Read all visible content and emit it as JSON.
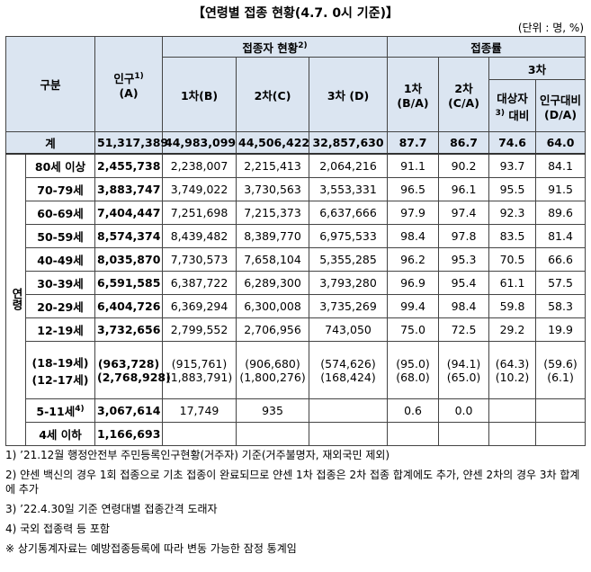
{
  "header": {
    "title": "【연령별 접종 현황(4.7. 0시 기준)】",
    "unit": "(단위 : 명, %)"
  },
  "table": {
    "head": {
      "category": "구분",
      "population": "인구",
      "population_note": "1)",
      "population_code": "(A)",
      "vaccinated": "접종자 현황",
      "vaccinated_note": "2)",
      "rate": "접종률",
      "dose1": "1차(B)",
      "dose2": "2차(C)",
      "dose3": "3차 (D)",
      "rate1": [
        "1차",
        "(B/A)"
      ],
      "rate2": [
        "2차",
        "(C/A)"
      ],
      "rate3": "3차",
      "rate3_target": [
        "대상자",
        "대비"
      ],
      "rate3_target_note": "3)",
      "rate3_pop": [
        "인구대비",
        "(D/A)"
      ]
    },
    "total": {
      "label": "계",
      "cells": [
        "51,317,389",
        "44,983,099",
        "44,506,422",
        "32,857,630",
        "87.7",
        "86.7",
        "74.6",
        "64.0"
      ]
    },
    "side_label": "연령",
    "rows": [
      {
        "label": "80세 이상",
        "cells": [
          "2,455,738",
          "2,238,007",
          "2,215,413",
          "2,064,216",
          "91.1",
          "90.2",
          "93.7",
          "84.1"
        ]
      },
      {
        "label": "70-79세",
        "cells": [
          "3,883,747",
          "3,749,022",
          "3,730,563",
          "3,553,331",
          "96.5",
          "96.1",
          "95.5",
          "91.5"
        ]
      },
      {
        "label": "60-69세",
        "cells": [
          "7,404,447",
          "7,251,698",
          "7,215,373",
          "6,637,666",
          "97.9",
          "97.4",
          "92.3",
          "89.6"
        ]
      },
      {
        "label": "50-59세",
        "cells": [
          "8,574,374",
          "8,439,482",
          "8,389,770",
          "6,975,533",
          "98.4",
          "97.8",
          "83.5",
          "81.4"
        ]
      },
      {
        "label": "40-49세",
        "cells": [
          "8,035,870",
          "7,730,573",
          "7,658,104",
          "5,355,285",
          "96.2",
          "95.3",
          "70.5",
          "66.6"
        ]
      },
      {
        "label": "30-39세",
        "cells": [
          "6,591,585",
          "6,387,722",
          "6,289,300",
          "3,793,280",
          "96.9",
          "95.4",
          "61.1",
          "57.5"
        ]
      },
      {
        "label": "20-29세",
        "cells": [
          "6,404,726",
          "6,369,294",
          "6,300,008",
          "3,735,269",
          "99.4",
          "98.4",
          "59.8",
          "58.3"
        ]
      },
      {
        "label": "12-19세",
        "cells": [
          "3,732,656",
          "2,799,552",
          "2,706,956",
          "743,050",
          "75.0",
          "72.5",
          "29.2",
          "19.9"
        ]
      },
      {
        "label": [
          "(18-19세)",
          "(12-17세)"
        ],
        "cells": [
          [
            "(963,728)",
            "(2,768,928)"
          ],
          [
            "(915,761)",
            "(1,883,791)"
          ],
          [
            "(906,680)",
            "(1,800,276)"
          ],
          [
            "(574,626)",
            "(168,424)"
          ],
          [
            "(95.0)",
            "(68.0)"
          ],
          [
            "(94.1)",
            "(65.0)"
          ],
          [
            "(64.3)",
            "(10.2)"
          ],
          [
            "(59.6)",
            "(6.1)"
          ]
        ]
      },
      {
        "label": "5-11세",
        "label_note": "4)",
        "cells": [
          "3,067,614",
          "17,749",
          "935",
          null,
          "0.6",
          "0.0",
          null,
          null
        ]
      },
      {
        "label": "4세 이하",
        "cells": [
          "1,166,693",
          null,
          null,
          null,
          null,
          null,
          null,
          null
        ]
      }
    ]
  },
  "footnotes": [
    "1) ’21.12월 행정안전부 주민등록인구현황(거주자) 기준(거주불명자, 재외국민 제외)",
    "2) 얀센 백신의 경우 1회 접종으로 기초 접종이 완료되므로 얀센 1차 접종은 2차 접종 합계에도 추가, 얀센 2차의 경우 3차 합계에 추가",
    "3) ’22.4.30일 기준 연령대별 접종간격 도래자",
    "4) 국외 접종력 등 포함",
    "※ 상기통계자료는 예방접종등록에 따라 변동 가능한 잠정 통계임"
  ]
}
